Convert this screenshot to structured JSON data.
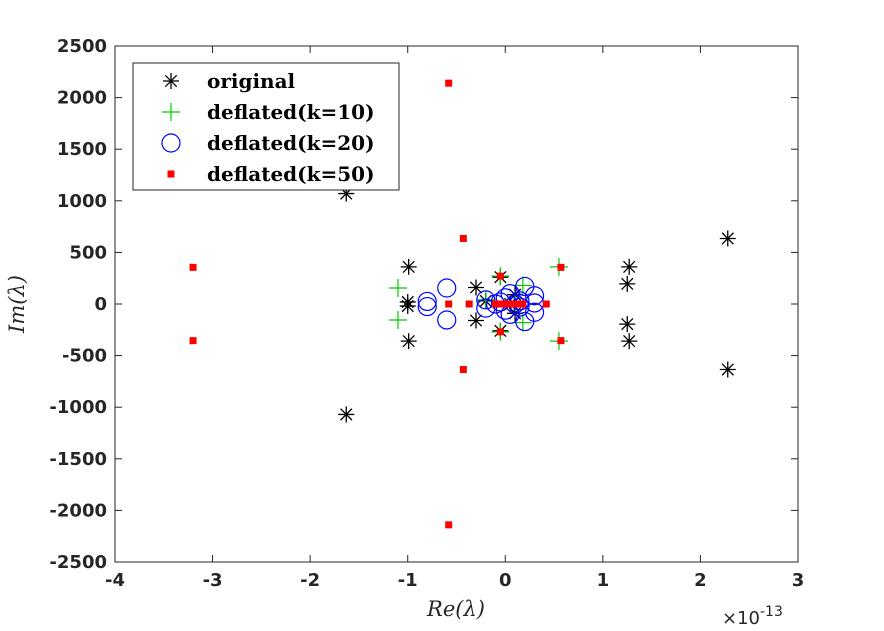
{
  "chart_data": {
    "type": "scatter",
    "xlabel": "Re(λ)",
    "ylabel": "Im(λ)",
    "xlim": [
      -4,
      3
    ],
    "ylim": [
      -2500,
      2500
    ],
    "x_multiplier_label": "×10",
    "x_multiplier_exponent": "-13",
    "x_ticks": [
      "-4",
      "-3",
      "-2",
      "-1",
      "0",
      "1",
      "2",
      "3"
    ],
    "y_ticks": [
      "-2500",
      "-2000",
      "-1500",
      "-1000",
      "-500",
      "0",
      "500",
      "1000",
      "1500",
      "2000",
      "2500"
    ],
    "legend_position": "top-left",
    "series": [
      {
        "name": "original",
        "marker": "asterisk",
        "color": "#000000",
        "points": [
          [
            -1.63,
            1070
          ],
          [
            -1.63,
            -1070
          ],
          [
            2.28,
            635
          ],
          [
            2.28,
            -635
          ],
          [
            1.27,
            360
          ],
          [
            1.27,
            -360
          ],
          [
            1.25,
            195
          ],
          [
            1.25,
            -195
          ],
          [
            -0.99,
            360
          ],
          [
            -0.99,
            -360
          ],
          [
            -1.0,
            20
          ],
          [
            -1.0,
            -20
          ],
          [
            -0.3,
            160
          ],
          [
            -0.3,
            -160
          ],
          [
            -0.05,
            260
          ],
          [
            -0.05,
            -260
          ],
          [
            0.1,
            90
          ],
          [
            0.1,
            -90
          ],
          [
            -0.2,
            30
          ],
          [
            0.05,
            0
          ]
        ]
      },
      {
        "name": "deflated(k=10)",
        "marker": "plus",
        "color": "#00cc00",
        "points": [
          [
            -1.1,
            155
          ],
          [
            -1.1,
            -155
          ],
          [
            0.55,
            360
          ],
          [
            0.55,
            -360
          ],
          [
            -0.05,
            270
          ],
          [
            -0.05,
            -270
          ],
          [
            0.18,
            180
          ],
          [
            0.18,
            -180
          ],
          [
            -0.2,
            40
          ],
          [
            0.1,
            20
          ]
        ]
      },
      {
        "name": "deflated(k=20)",
        "marker": "circle",
        "color": "#0000ff",
        "points": [
          [
            -0.6,
            155
          ],
          [
            -0.6,
            -155
          ],
          [
            -0.8,
            25
          ],
          [
            -0.8,
            -25
          ],
          [
            0.2,
            170
          ],
          [
            0.2,
            -170
          ],
          [
            0.3,
            80
          ],
          [
            0.3,
            -80
          ],
          [
            -0.2,
            40
          ],
          [
            -0.2,
            -40
          ],
          [
            0.3,
            10
          ],
          [
            0.05,
            100
          ],
          [
            0.05,
            -100
          ],
          [
            -0.1,
            0
          ],
          [
            0.15,
            30
          ],
          [
            0.15,
            -30
          ],
          [
            0.0,
            60
          ],
          [
            0.0,
            -60
          ],
          [
            0.1,
            0
          ],
          [
            -0.05,
            20
          ]
        ]
      },
      {
        "name": "deflated(k=50)",
        "marker": "square",
        "color": "#ff0000",
        "points": [
          [
            -0.58,
            2140
          ],
          [
            -0.58,
            -2140
          ],
          [
            -3.2,
            355
          ],
          [
            -3.2,
            -355
          ],
          [
            -0.43,
            635
          ],
          [
            -0.43,
            -635
          ],
          [
            0.57,
            355
          ],
          [
            0.57,
            -355
          ],
          [
            -0.05,
            270
          ],
          [
            -0.05,
            -270
          ],
          [
            0.42,
            0
          ],
          [
            -0.58,
            0
          ],
          [
            -0.37,
            0
          ],
          [
            0.18,
            0
          ],
          [
            -0.1,
            0
          ],
          [
            0.0,
            0
          ],
          [
            0.05,
            0
          ],
          [
            0.08,
            0
          ],
          [
            -0.05,
            0
          ],
          [
            0.12,
            0
          ]
        ]
      }
    ]
  }
}
